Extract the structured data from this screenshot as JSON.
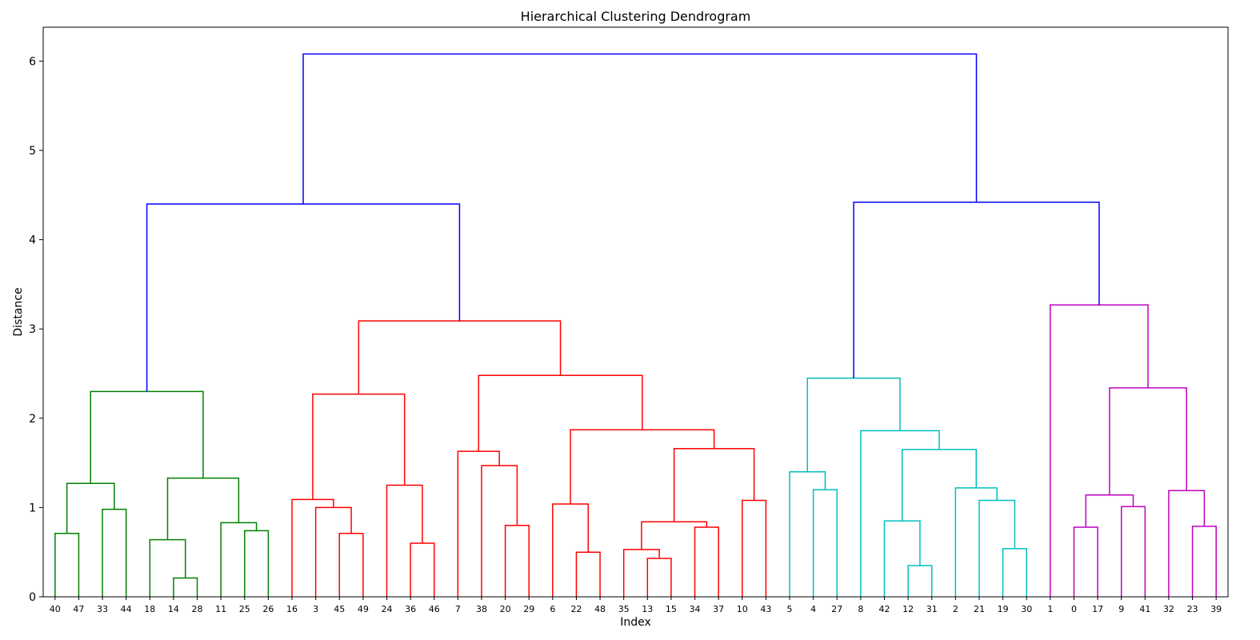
{
  "chart_data": {
    "type": "dendrogram",
    "title": "Hierarchical Clustering Dendrogram",
    "xlabel": "Index",
    "ylabel": "Distance",
    "ylim": [
      0,
      6.38
    ],
    "yticks": [
      0,
      1,
      2,
      3,
      4,
      5,
      6
    ],
    "grid": false,
    "leaves": [
      "40",
      "47",
      "33",
      "44",
      "18",
      "14",
      "28",
      "11",
      "25",
      "26",
      "16",
      "3",
      "45",
      "49",
      "24",
      "36",
      "46",
      "7",
      "38",
      "20",
      "29",
      "6",
      "22",
      "48",
      "35",
      "13",
      "15",
      "34",
      "37",
      "10",
      "43",
      "5",
      "4",
      "27",
      "8",
      "42",
      "12",
      "31",
      "2",
      "21",
      "19",
      "30",
      "1",
      "0",
      "17",
      "9",
      "41",
      "32",
      "23",
      "39"
    ],
    "cluster_colors": {
      "green": "#008000",
      "red": "#ff0000",
      "cyan": "#00bfbf",
      "magenta": "#bf00bf",
      "blue": "#0000ff"
    },
    "merges": [
      {
        "a": "L:40",
        "b": "L:47",
        "height": 0.71,
        "color": "green"
      },
      {
        "a": "L:33",
        "b": "L:44",
        "height": 0.98,
        "color": "green"
      },
      {
        "a": "M:0",
        "b": "M:1",
        "height": 1.27,
        "color": "green"
      },
      {
        "a": "L:14",
        "b": "L:28",
        "height": 0.21,
        "color": "green"
      },
      {
        "a": "L:18",
        "b": "M:3",
        "height": 0.64,
        "color": "green"
      },
      {
        "a": "L:25",
        "b": "L:26",
        "height": 0.74,
        "color": "green"
      },
      {
        "a": "L:11",
        "b": "M:5",
        "height": 0.83,
        "color": "green"
      },
      {
        "a": "M:4",
        "b": "M:6",
        "height": 1.33,
        "color": "green"
      },
      {
        "a": "M:2",
        "b": "M:7",
        "height": 2.3,
        "color": "green"
      },
      {
        "a": "L:45",
        "b": "L:49",
        "height": 0.71,
        "color": "red"
      },
      {
        "a": "L:3",
        "b": "M:9",
        "height": 1.0,
        "color": "red"
      },
      {
        "a": "L:16",
        "b": "M:10",
        "height": 1.09,
        "color": "red"
      },
      {
        "a": "L:36",
        "b": "L:46",
        "height": 0.6,
        "color": "red"
      },
      {
        "a": "L:24",
        "b": "M:12",
        "height": 1.25,
        "color": "red"
      },
      {
        "a": "M:11",
        "b": "M:13",
        "height": 2.27,
        "color": "red"
      },
      {
        "a": "L:20",
        "b": "L:29",
        "height": 0.8,
        "color": "red"
      },
      {
        "a": "L:38",
        "b": "M:15",
        "height": 1.47,
        "color": "red"
      },
      {
        "a": "L:7",
        "b": "M:16",
        "height": 1.63,
        "color": "red"
      },
      {
        "a": "L:22",
        "b": "L:48",
        "height": 0.5,
        "color": "red"
      },
      {
        "a": "L:6",
        "b": "M:18",
        "height": 1.04,
        "color": "red"
      },
      {
        "a": "L:13",
        "b": "L:15",
        "height": 0.43,
        "color": "red"
      },
      {
        "a": "L:35",
        "b": "M:20",
        "height": 0.53,
        "color": "red"
      },
      {
        "a": "L:34",
        "b": "L:37",
        "height": 0.78,
        "color": "red"
      },
      {
        "a": "M:21",
        "b": "M:22",
        "height": 0.84,
        "color": "red"
      },
      {
        "a": "L:10",
        "b": "L:43",
        "height": 1.08,
        "color": "red"
      },
      {
        "a": "M:23",
        "b": "M:24",
        "height": 1.66,
        "color": "red"
      },
      {
        "a": "M:19",
        "b": "M:25",
        "height": 1.87,
        "color": "red"
      },
      {
        "a": "M:17",
        "b": "M:26",
        "height": 2.48,
        "color": "red"
      },
      {
        "a": "M:14",
        "b": "M:27",
        "height": 3.09,
        "color": "red"
      },
      {
        "a": "M:8",
        "b": "M:28",
        "height": 4.4,
        "color": "blue"
      },
      {
        "a": "L:4",
        "b": "L:27",
        "height": 1.2,
        "color": "cyan"
      },
      {
        "a": "L:5",
        "b": "M:30",
        "height": 1.4,
        "color": "cyan"
      },
      {
        "a": "L:12",
        "b": "L:31",
        "height": 0.35,
        "color": "cyan"
      },
      {
        "a": "L:42",
        "b": "M:32",
        "height": 0.85,
        "color": "cyan"
      },
      {
        "a": "L:19",
        "b": "L:30",
        "height": 0.54,
        "color": "cyan"
      },
      {
        "a": "L:21",
        "b": "M:34",
        "height": 1.08,
        "color": "cyan"
      },
      {
        "a": "L:2",
        "b": "M:35",
        "height": 1.22,
        "color": "cyan"
      },
      {
        "a": "M:33",
        "b": "M:36",
        "height": 1.65,
        "color": "cyan"
      },
      {
        "a": "L:8",
        "b": "M:37",
        "height": 1.86,
        "color": "cyan"
      },
      {
        "a": "M:31",
        "b": "M:38",
        "height": 2.45,
        "color": "cyan"
      },
      {
        "a": "L:0",
        "b": "L:17",
        "height": 0.78,
        "color": "magenta"
      },
      {
        "a": "L:9",
        "b": "L:41",
        "height": 1.01,
        "color": "magenta"
      },
      {
        "a": "M:40",
        "b": "M:41",
        "height": 1.14,
        "color": "magenta"
      },
      {
        "a": "L:23",
        "b": "L:39",
        "height": 0.79,
        "color": "magenta"
      },
      {
        "a": "L:32",
        "b": "M:43",
        "height": 1.19,
        "color": "magenta"
      },
      {
        "a": "M:42",
        "b": "M:44",
        "height": 2.34,
        "color": "magenta"
      },
      {
        "a": "L:1",
        "b": "M:45",
        "height": 3.27,
        "color": "magenta"
      },
      {
        "a": "M:39",
        "b": "M:46",
        "height": 4.42,
        "color": "blue"
      },
      {
        "a": "M:29",
        "b": "M:47",
        "height": 6.08,
        "color": "blue"
      }
    ]
  }
}
